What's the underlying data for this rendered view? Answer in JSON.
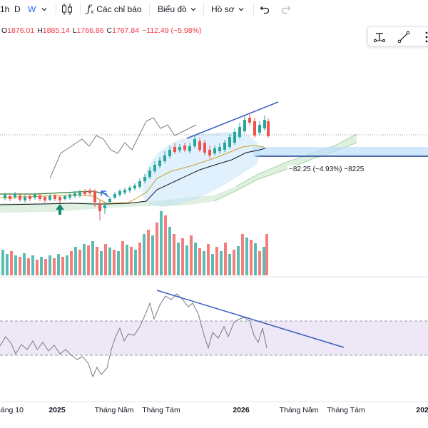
{
  "toolbar": {
    "interval_1h": "1h",
    "interval_d": "D",
    "interval_w": "W",
    "indicators_label": "Các chỉ báo",
    "chart_types_label": "Biểu đồ",
    "profile_label": "Hồ sơ",
    "active_interval": "W"
  },
  "ohlc": {
    "open_prefix": "O",
    "open": "1876.01",
    "high_prefix": "H",
    "high": "1885.14",
    "low_prefix": "L",
    "low": "1766.86",
    "close_prefix": "C",
    "close": "1767.84",
    "change": "−112.49 (−5.98%)"
  },
  "drawing_tools": {
    "icons": [
      "anchored-text-icon",
      "trend-line-icon",
      "more-tools-icon"
    ]
  },
  "measure": {
    "label": "−82.25 (−4.93%) −8225"
  },
  "time_axis": {
    "labels": [
      {
        "text": "háng 10",
        "bold": false
      },
      {
        "text": "2025",
        "bold": true
      },
      {
        "text": "Tháng Năm",
        "bold": false
      },
      {
        "text": "Tháng Tám",
        "bold": false
      },
      {
        "text": "2026",
        "bold": true
      },
      {
        "text": "Tháng Năm",
        "bold": false
      },
      {
        "text": "Tháng Tám",
        "bold": false
      },
      {
        "text": "202",
        "bold": true
      }
    ]
  },
  "colors": {
    "up": "#26a69a",
    "down": "#ef5350",
    "trendline": "#3b5fc0",
    "rsi_line": "#787b86",
    "rsi_band": "#ede7f6",
    "cloud": "#d7ecd9",
    "zone": "#bbdefb"
  }
}
